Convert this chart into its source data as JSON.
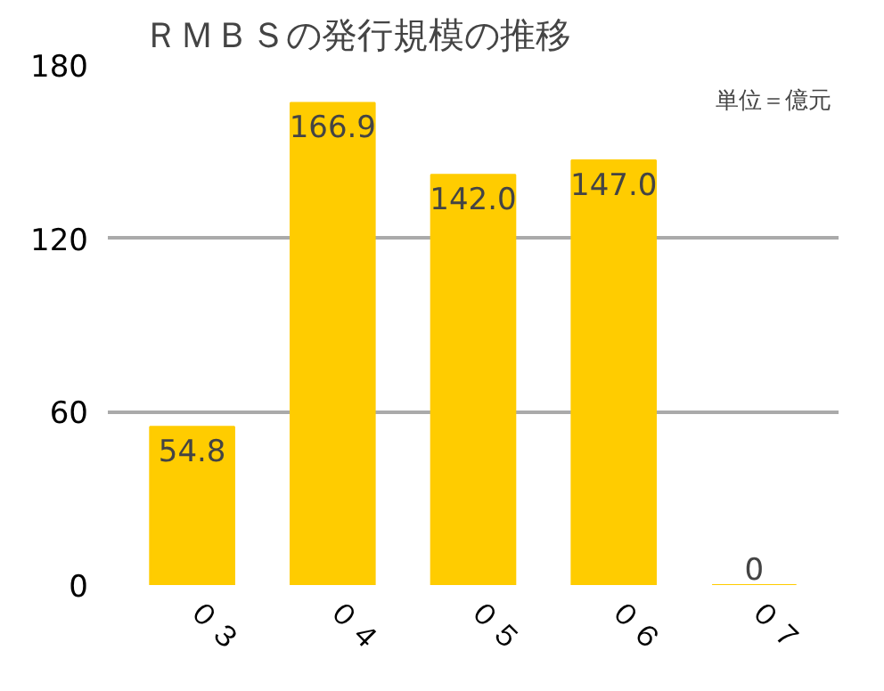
{
  "chart_data": {
    "type": "bar",
    "title": "ＲＭＢＳの発行規模の推移",
    "categories": [
      "０３",
      "０４",
      "０５",
      "０６",
      "０７"
    ],
    "values": [
      54.8,
      166.9,
      142.0,
      147.0,
      0
    ],
    "value_labels": [
      "54.8",
      "166.9",
      "142.0",
      "147.0",
      "0"
    ],
    "color": "#ffcc00",
    "ylim": [
      0,
      180
    ],
    "yticks": [
      0,
      60,
      120,
      180
    ],
    "grid": "y",
    "annotations": [
      "単位＝億元"
    ]
  }
}
